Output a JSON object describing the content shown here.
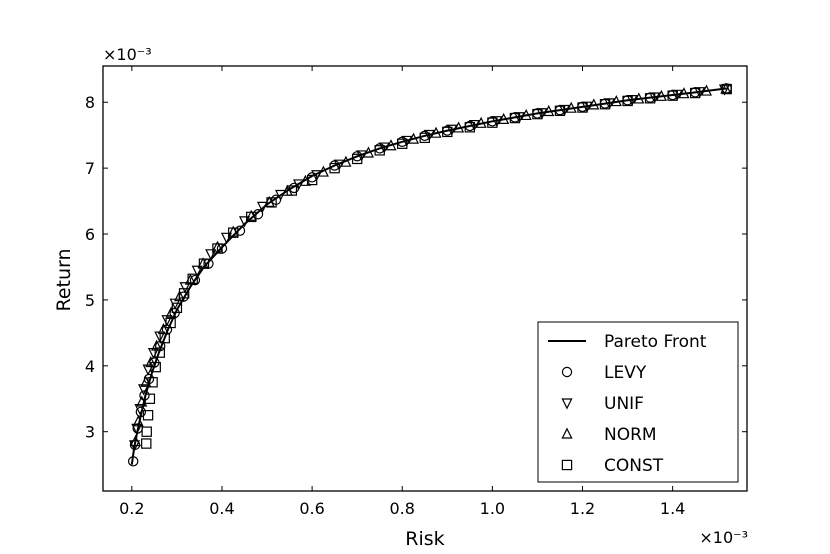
{
  "chart_data": {
    "type": "line",
    "xlabel": "Risk",
    "ylabel": "Return",
    "x_scale_label": "×10⁻³",
    "y_scale_label": "×10⁻³",
    "xlim": [
      0.136,
      1.565
    ],
    "ylim": [
      2.1,
      8.55
    ],
    "x_ticks": [
      "0.2",
      "0.4",
      "0.6",
      "0.8",
      "1.0",
      "1.2",
      "1.4"
    ],
    "x_tick_values": [
      0.2,
      0.4,
      0.6,
      0.8,
      1.0,
      1.2,
      1.4
    ],
    "y_ticks": [
      "3",
      "4",
      "5",
      "6",
      "7",
      "8"
    ],
    "y_tick_values": [
      3,
      4,
      5,
      6,
      7,
      8
    ],
    "grid": false,
    "legend_placement": "lower-right",
    "legend": [
      "Pareto Front",
      "LEVY",
      "UNIF",
      "NORM",
      "CONST"
    ],
    "series": [
      {
        "name": "Pareto Front",
        "style": "line",
        "x": [
          0.2,
          0.205,
          0.212,
          0.22,
          0.23,
          0.245,
          0.26,
          0.28,
          0.3,
          0.33,
          0.36,
          0.4,
          0.45,
          0.5,
          0.55,
          0.6,
          0.65,
          0.7,
          0.75,
          0.8,
          0.85,
          0.9,
          0.95,
          1.0,
          1.05,
          1.1,
          1.15,
          1.2,
          1.25,
          1.3,
          1.35,
          1.4,
          1.45,
          1.52
        ],
        "y": [
          2.5,
          2.75,
          3.0,
          3.25,
          3.55,
          3.9,
          4.2,
          4.55,
          4.85,
          5.2,
          5.5,
          5.8,
          6.15,
          6.45,
          6.68,
          6.88,
          7.04,
          7.18,
          7.3,
          7.4,
          7.49,
          7.57,
          7.64,
          7.71,
          7.77,
          7.83,
          7.88,
          7.93,
          7.98,
          8.03,
          8.07,
          8.11,
          8.15,
          8.21
        ]
      },
      {
        "name": "LEVY",
        "style": "circle",
        "x": [
          0.203,
          0.207,
          0.213,
          0.22,
          0.228,
          0.238,
          0.25,
          0.263,
          0.278,
          0.295,
          0.315,
          0.34,
          0.37,
          0.4,
          0.44,
          0.48,
          0.52,
          0.56,
          0.6,
          0.65,
          0.7,
          0.75,
          0.8,
          0.85,
          0.9,
          0.95,
          1.0,
          1.05,
          1.1,
          1.15,
          1.2,
          1.25,
          1.3,
          1.35,
          1.4,
          1.45,
          1.52
        ],
        "y": [
          2.55,
          2.8,
          3.05,
          3.3,
          3.55,
          3.8,
          4.05,
          4.3,
          4.55,
          4.8,
          5.05,
          5.3,
          5.55,
          5.78,
          6.05,
          6.3,
          6.52,
          6.7,
          6.86,
          7.04,
          7.18,
          7.3,
          7.4,
          7.49,
          7.57,
          7.64,
          7.71,
          7.77,
          7.83,
          7.88,
          7.93,
          7.98,
          8.03,
          8.07,
          8.11,
          8.15,
          8.21
        ]
      },
      {
        "name": "UNIF",
        "style": "triangle-down",
        "x": [
          0.206,
          0.211,
          0.218,
          0.226,
          0.236,
          0.248,
          0.262,
          0.278,
          0.296,
          0.318,
          0.345,
          0.375,
          0.41,
          0.45,
          0.49,
          0.53,
          0.57,
          0.61,
          0.66,
          0.71,
          0.76,
          0.81,
          0.86,
          0.91,
          0.96,
          1.01,
          1.06,
          1.11,
          1.16,
          1.21,
          1.26,
          1.31,
          1.36,
          1.41,
          1.46,
          1.515
        ],
        "y": [
          2.8,
          3.05,
          3.35,
          3.65,
          3.95,
          4.2,
          4.45,
          4.7,
          4.95,
          5.2,
          5.45,
          5.7,
          5.95,
          6.2,
          6.42,
          6.6,
          6.76,
          6.9,
          7.06,
          7.2,
          7.32,
          7.42,
          7.51,
          7.59,
          7.66,
          7.72,
          7.78,
          7.84,
          7.89,
          7.94,
          7.99,
          8.04,
          8.08,
          8.12,
          8.16,
          8.2
        ]
      },
      {
        "name": "NORM",
        "style": "triangle-up",
        "x": [
          0.208,
          0.214,
          0.222,
          0.231,
          0.242,
          0.255,
          0.27,
          0.287,
          0.306,
          0.33,
          0.358,
          0.39,
          0.425,
          0.465,
          0.505,
          0.545,
          0.585,
          0.625,
          0.675,
          0.725,
          0.775,
          0.825,
          0.875,
          0.925,
          0.975,
          1.025,
          1.075,
          1.125,
          1.175,
          1.225,
          1.275,
          1.325,
          1.375,
          1.425,
          1.475,
          1.518
        ],
        "y": [
          2.85,
          3.15,
          3.45,
          3.75,
          4.05,
          4.3,
          4.55,
          4.8,
          5.05,
          5.3,
          5.55,
          5.8,
          6.03,
          6.27,
          6.48,
          6.65,
          6.8,
          6.94,
          7.09,
          7.23,
          7.34,
          7.44,
          7.53,
          7.61,
          7.68,
          7.74,
          7.8,
          7.86,
          7.91,
          7.96,
          8.01,
          8.05,
          8.09,
          8.13,
          8.17,
          8.2
        ]
      },
      {
        "name": "CONST",
        "style": "square",
        "x": [
          0.232,
          0.233,
          0.236,
          0.24,
          0.246,
          0.253,
          0.262,
          0.273,
          0.286,
          0.3,
          0.316,
          0.335,
          0.36,
          0.39,
          0.425,
          0.465,
          0.51,
          0.555,
          0.6,
          0.65,
          0.7,
          0.75,
          0.8,
          0.85,
          0.9,
          0.95,
          1.0,
          1.05,
          1.1,
          1.15,
          1.2,
          1.25,
          1.3,
          1.35,
          1.4,
          1.45,
          1.52
        ],
        "y": [
          2.82,
          3.0,
          3.25,
          3.5,
          3.75,
          3.98,
          4.2,
          4.42,
          4.65,
          4.88,
          5.1,
          5.32,
          5.55,
          5.78,
          6.02,
          6.26,
          6.48,
          6.66,
          6.82,
          7.0,
          7.14,
          7.27,
          7.37,
          7.46,
          7.55,
          7.62,
          7.69,
          7.76,
          7.82,
          7.87,
          7.92,
          7.97,
          8.02,
          8.06,
          8.1,
          8.14,
          8.2
        ]
      }
    ]
  }
}
